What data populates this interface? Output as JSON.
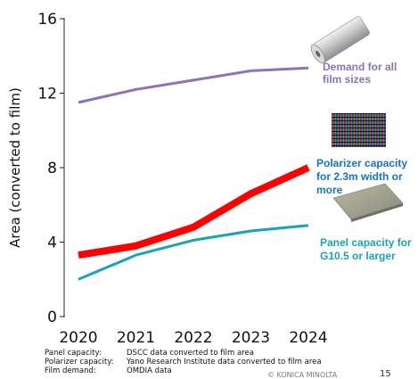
{
  "chart_data": {
    "type": "line",
    "x": [
      "2020",
      "2021",
      "2022",
      "2023",
      "2024"
    ],
    "ylabel": "Area (converted to film)",
    "ylim": [
      0,
      16
    ],
    "yticks": [
      "0",
      "4",
      "8",
      "12",
      "16"
    ],
    "grid": false,
    "series": [
      {
        "name": "Demand for all film sizes",
        "values": [
          11.5,
          12.2,
          12.7,
          13.2,
          13.35
        ],
        "color": "#8b74b6",
        "icon": "film-roll-icon"
      },
      {
        "name": "Polarizer capacity for 2.3m width or more",
        "values": [
          3.3,
          3.8,
          4.8,
          6.6,
          8.0
        ],
        "color": "#ff0000",
        "label_color": "#1a6fc9",
        "icon": "pixel-grid-icon"
      },
      {
        "name": "Panel capacity for G10.5 or larger",
        "values": [
          2.0,
          3.3,
          4.1,
          4.6,
          4.9
        ],
        "color": "#1aa3b3",
        "icon": "glass-panel-icon"
      }
    ]
  },
  "notes": [
    {
      "key": "Panel capacity:",
      "value": "DSCC data converted to film area"
    },
    {
      "key": "Polarizer capacity:",
      "value": "Yano Research Institute data converted to film area"
    },
    {
      "key": "Film demand:",
      "value": "OMDIA data"
    }
  ],
  "footer": {
    "copyright": "© KONICA MINOLTA",
    "page": "15"
  }
}
